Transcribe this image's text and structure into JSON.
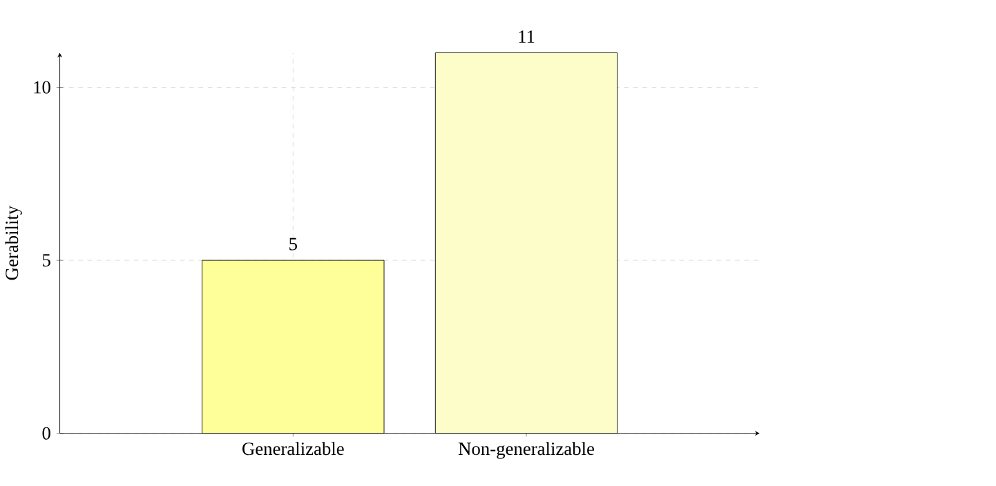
{
  "chart_data": {
    "type": "bar",
    "ylabel": "Gerability",
    "categories": [
      "Generalizable",
      "Non-generalizable"
    ],
    "values": [
      5,
      11
    ],
    "colors": [
      "#ffff99",
      "#fdfdc9"
    ],
    "ylim": [
      0,
      11
    ],
    "yticks": [
      0,
      5,
      10
    ],
    "grid": true,
    "data_labels": true
  }
}
